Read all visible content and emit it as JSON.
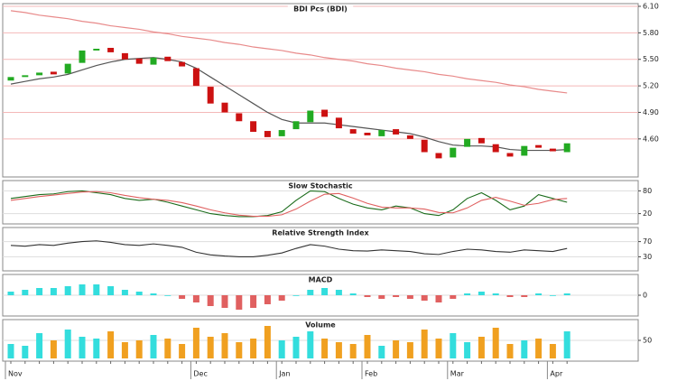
{
  "chart_data": [
    {
      "type": "candlestick",
      "title": "BDI Pcs (BDI)",
      "categories": [
        "Nov",
        null,
        null,
        null,
        null,
        null,
        null,
        null,
        null,
        null,
        null,
        null,
        null,
        "Dec",
        null,
        null,
        null,
        null,
        null,
        "Jan",
        null,
        null,
        null,
        null,
        null,
        "Feb",
        null,
        null,
        null,
        null,
        null,
        "Mar",
        null,
        null,
        null,
        null,
        null,
        null,
        "Apr",
        null
      ],
      "open": [
        5.26,
        5.3,
        5.32,
        5.36,
        5.34,
        5.46,
        5.6,
        5.63,
        5.57,
        5.51,
        5.44,
        5.53,
        5.47,
        5.4,
        5.19,
        5.01,
        4.89,
        4.8,
        4.69,
        4.63,
        4.71,
        4.79,
        4.93,
        4.84,
        4.71,
        4.67,
        4.63,
        4.71,
        4.64,
        4.59,
        4.44,
        4.39,
        4.51,
        4.61,
        4.54,
        4.44,
        4.41,
        4.53,
        4.49,
        4.45
      ],
      "close": [
        5.3,
        5.32,
        5.35,
        5.33,
        5.45,
        5.6,
        5.62,
        5.58,
        5.5,
        5.45,
        5.52,
        5.48,
        5.42,
        5.2,
        5.0,
        4.9,
        4.8,
        4.68,
        4.62,
        4.7,
        4.8,
        4.92,
        4.85,
        4.72,
        4.66,
        4.64,
        4.7,
        4.65,
        4.6,
        4.45,
        4.38,
        4.5,
        4.6,
        4.55,
        4.45,
        4.4,
        4.52,
        4.5,
        4.46,
        4.55
      ],
      "up_color": "#22aa22",
      "down_color": "#cc1111",
      "overlays": [
        {
          "color": "#e88a8a",
          "values": [
            6.05,
            6.03,
            6.0,
            5.98,
            5.96,
            5.93,
            5.91,
            5.88,
            5.86,
            5.84,
            5.81,
            5.79,
            5.76,
            5.74,
            5.72,
            5.69,
            5.67,
            5.64,
            5.62,
            5.6,
            5.57,
            5.55,
            5.52,
            5.5,
            5.48,
            5.45,
            5.43,
            5.4,
            5.38,
            5.36,
            5.33,
            5.31,
            5.28,
            5.26,
            5.24,
            5.21,
            5.19,
            5.16,
            5.14,
            5.12
          ]
        },
        {
          "color": "#555555",
          "values": [
            5.22,
            5.25,
            5.28,
            5.3,
            5.33,
            5.38,
            5.43,
            5.47,
            5.5,
            5.51,
            5.52,
            5.5,
            5.47,
            5.4,
            5.3,
            5.2,
            5.1,
            5.0,
            4.9,
            4.82,
            4.78,
            4.78,
            4.78,
            4.76,
            4.74,
            4.72,
            4.7,
            4.68,
            4.66,
            4.62,
            4.57,
            4.53,
            4.52,
            4.52,
            4.51,
            4.48,
            4.47,
            4.47,
            4.47,
            4.48
          ]
        }
      ],
      "ylim": [
        4.2,
        6.1
      ],
      "yticks": [
        {
          "value": 4.6,
          "label": "4.60"
        },
        {
          "value": 4.9,
          "label": "4.90"
        },
        {
          "value": 5.2,
          "label": "5.20"
        },
        {
          "value": 5.5,
          "label": "5.50"
        },
        {
          "value": 5.8,
          "label": "5.80"
        },
        {
          "value": 6.1,
          "label": "6.10"
        }
      ],
      "grid": true,
      "grid_color": "#f4b8b8"
    },
    {
      "type": "line",
      "title": "Slow Stochastic",
      "series": [
        {
          "color": "#1a6b1a",
          "values": [
            60,
            65,
            70,
            72,
            78,
            80,
            75,
            70,
            60,
            55,
            58,
            50,
            40,
            30,
            20,
            15,
            12,
            12,
            15,
            25,
            55,
            80,
            78,
            60,
            45,
            35,
            30,
            40,
            35,
            20,
            15,
            30,
            60,
            75,
            55,
            30,
            40,
            70,
            60,
            50
          ]
        },
        {
          "color": "#e06060",
          "values": [
            55,
            60,
            65,
            69,
            73,
            77,
            78,
            75,
            68,
            62,
            58,
            55,
            49,
            40,
            30,
            22,
            16,
            13,
            13,
            17,
            32,
            53,
            71,
            73,
            61,
            47,
            37,
            35,
            35,
            32,
            23,
            22,
            35,
            55,
            63,
            53,
            42,
            47,
            57,
            60
          ]
        }
      ],
      "ylim": [
        0,
        100
      ],
      "yticks": [
        20,
        80
      ],
      "grid": true,
      "grid_color": "#dddddd"
    },
    {
      "type": "line",
      "title": "Relative Strength Index",
      "series": [
        {
          "color": "#333333",
          "values": [
            60,
            58,
            62,
            60,
            66,
            70,
            72,
            68,
            62,
            60,
            64,
            60,
            55,
            42,
            35,
            32,
            30,
            30,
            34,
            40,
            52,
            62,
            58,
            50,
            46,
            45,
            48,
            46,
            44,
            38,
            36,
            44,
            50,
            48,
            44,
            42,
            48,
            46,
            44,
            52
          ]
        }
      ],
      "ylim": [
        0,
        100
      ],
      "yticks": [
        30,
        70
      ],
      "grid": true,
      "grid_color": "#dddddd"
    },
    {
      "type": "bar",
      "title": "MACD",
      "values": [
        0.02,
        0.03,
        0.04,
        0.04,
        0.05,
        0.06,
        0.06,
        0.05,
        0.03,
        0.02,
        0.01,
        0.0,
        -0.02,
        -0.04,
        -0.06,
        -0.07,
        -0.08,
        -0.07,
        -0.05,
        -0.03,
        0.0,
        0.03,
        0.04,
        0.03,
        0.01,
        -0.01,
        -0.02,
        -0.01,
        -0.02,
        -0.03,
        -0.04,
        -0.02,
        0.01,
        0.02,
        0.01,
        -0.01,
        -0.01,
        0.01,
        0.0,
        0.01
      ],
      "color": "#33dddd",
      "neg_color": "#e06060",
      "ylim": [
        -0.1,
        0.1
      ],
      "yticks": [
        0
      ],
      "grid": true,
      "grid_color": "#dddddd"
    },
    {
      "type": "bar",
      "title": "Volume",
      "values": [
        40,
        35,
        70,
        50,
        80,
        60,
        55,
        75,
        45,
        50,
        65,
        55,
        40,
        85,
        60,
        70,
        45,
        55,
        90,
        50,
        60,
        75,
        55,
        45,
        40,
        65,
        35,
        50,
        45,
        80,
        55,
        70,
        45,
        60,
        85,
        40,
        50,
        55,
        40,
        75
      ],
      "color": "#33dddd",
      "neg_color": "#f0a020",
      "ylim": [
        0,
        100
      ],
      "yticks": [
        50
      ],
      "grid": true,
      "grid_color": "#dddddd"
    }
  ]
}
